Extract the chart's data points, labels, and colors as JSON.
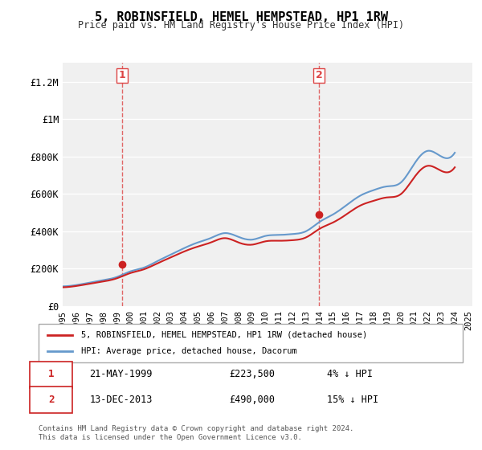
{
  "title": "5, ROBINSFIELD, HEMEL HEMPSTEAD, HP1 1RW",
  "subtitle": "Price paid vs. HM Land Registry's House Price Index (HPI)",
  "xlabel": "",
  "ylabel": "",
  "ylim": [
    0,
    1300000
  ],
  "yticks": [
    0,
    200000,
    400000,
    600000,
    800000,
    1000000,
    1200000
  ],
  "ytick_labels": [
    "£0",
    "£200K",
    "£400K",
    "£600K",
    "£800K",
    "£1M",
    "£1.2M"
  ],
  "background_color": "#ffffff",
  "plot_bg_color": "#f0f0f0",
  "grid_color": "#ffffff",
  "purchase1_date": "1999-05-21",
  "purchase1_price": 223500,
  "purchase1_label": "1",
  "purchase2_date": "2013-12-13",
  "purchase2_price": 490000,
  "purchase2_label": "2",
  "hpi_color": "#6699cc",
  "price_color": "#cc2222",
  "dashed_line_color": "#dd4444",
  "legend_label_price": "5, ROBINSFIELD, HEMEL HEMPSTEAD, HP1 1RW (detached house)",
  "legend_label_hpi": "HPI: Average price, detached house, Dacorum",
  "footer_line1": "Contains HM Land Registry data © Crown copyright and database right 2024.",
  "footer_line2": "This data is licensed under the Open Government Licence v3.0.",
  "table_row1": [
    "1",
    "21-MAY-1999",
    "£223,500",
    "4% ↓ HPI"
  ],
  "table_row2": [
    "2",
    "13-DEC-2013",
    "£490,000",
    "15% ↓ HPI"
  ],
  "hpi_data_years": [
    1995,
    1996,
    1997,
    1998,
    1999,
    2000,
    2001,
    2002,
    2003,
    2004,
    2005,
    2006,
    2007,
    2008,
    2009,
    2010,
    2011,
    2012,
    2013,
    2014,
    2015,
    2016,
    2017,
    2018,
    2019,
    2020,
    2021,
    2022,
    2023,
    2024
  ],
  "hpi_values": [
    105000,
    112000,
    125000,
    138000,
    155000,
    185000,
    205000,
    240000,
    275000,
    310000,
    340000,
    365000,
    390000,
    370000,
    355000,
    375000,
    380000,
    385000,
    400000,
    450000,
    490000,
    540000,
    590000,
    620000,
    640000,
    660000,
    760000,
    830000,
    800000,
    820000
  ],
  "price_data_years": [
    1995,
    1996,
    1997,
    1998,
    1999,
    2000,
    2001,
    2002,
    2003,
    2004,
    2005,
    2006,
    2007,
    2008,
    2009,
    2010,
    2011,
    2012,
    2013,
    2014,
    2015,
    2016,
    2017,
    2018,
    2019,
    2020,
    2021,
    2022,
    2023,
    2024
  ],
  "price_values": [
    100000,
    107000,
    119000,
    131000,
    148000,
    176000,
    196000,
    228000,
    260000,
    292000,
    318000,
    341000,
    363000,
    340000,
    328000,
    346000,
    349000,
    352000,
    367000,
    413000,
    447000,
    491000,
    537000,
    563000,
    581000,
    598000,
    688000,
    750000,
    723000,
    742000
  ],
  "xtick_years": [
    1995,
    1996,
    1997,
    1998,
    1999,
    2000,
    2001,
    2002,
    2003,
    2004,
    2005,
    2006,
    2007,
    2008,
    2009,
    2010,
    2011,
    2012,
    2013,
    2014,
    2015,
    2016,
    2017,
    2018,
    2019,
    2020,
    2021,
    2022,
    2023,
    2024,
    2025
  ]
}
